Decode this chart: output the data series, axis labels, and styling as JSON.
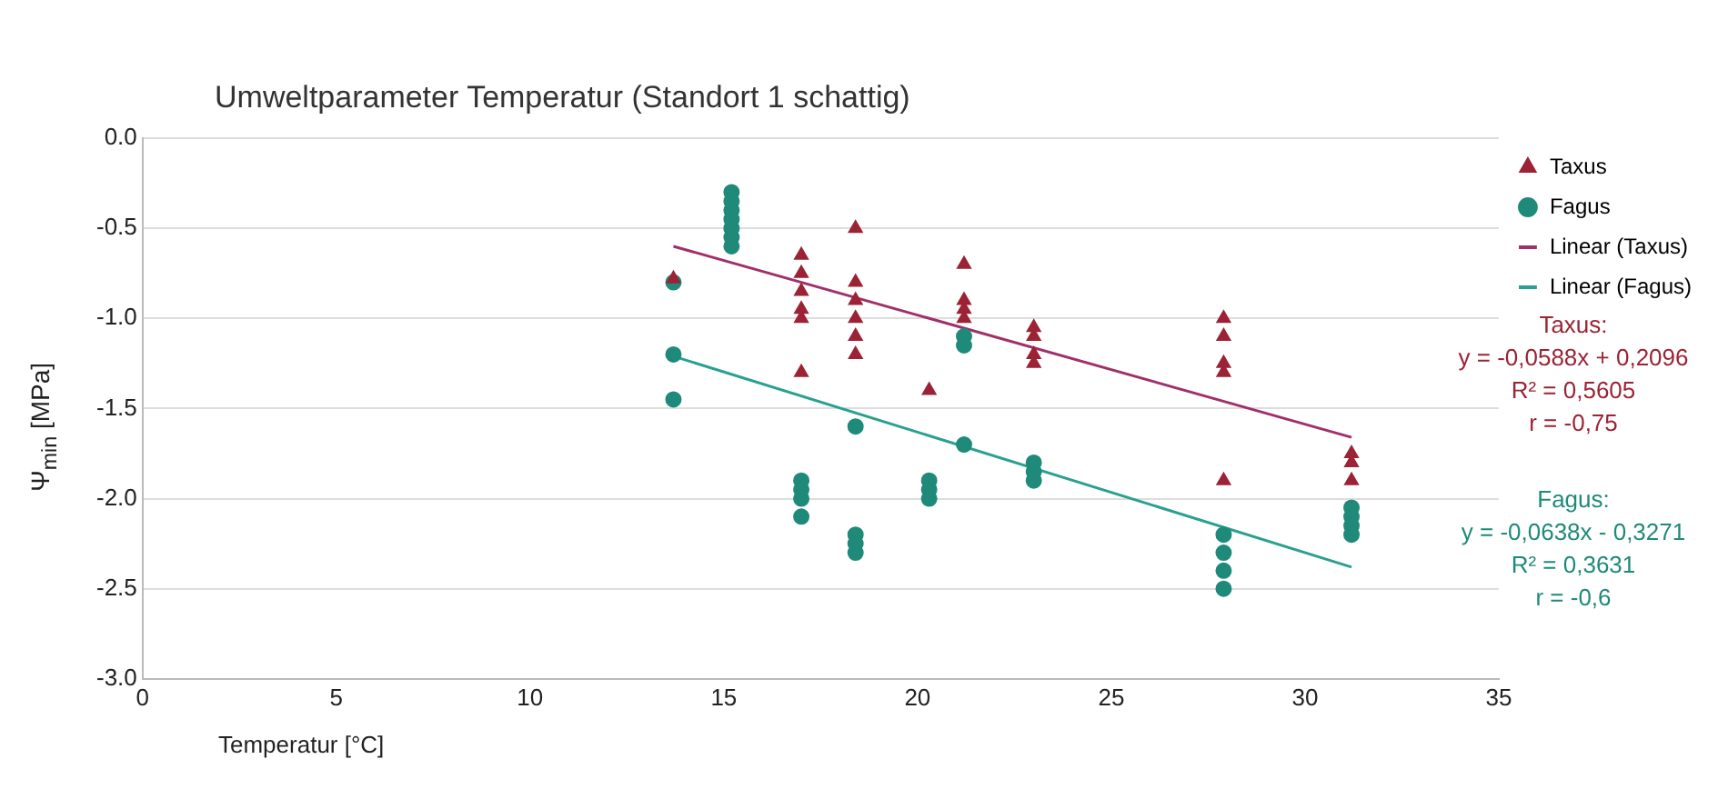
{
  "chart_data": {
    "type": "scatter",
    "title": "Umweltparameter Temperatur (Standort 1 schattig)",
    "xlabel": "Temperatur [°C]",
    "ylabel": "Ψ$_{min}$ [MPa]",
    "xlim": [
      0,
      35
    ],
    "xticks": [
      0,
      5,
      10,
      15,
      20,
      25,
      30,
      35
    ],
    "ylim": [
      -3,
      0
    ],
    "yticks": [
      {
        "value": 0,
        "label": "0.0"
      },
      {
        "value": -0.5,
        "label": "-0.5"
      },
      {
        "value": -1,
        "label": "-1.0"
      },
      {
        "value": -1.5,
        "label": "-1.5"
      },
      {
        "value": -2,
        "label": "-2.0"
      },
      {
        "value": -2.5,
        "label": "-2.5"
      },
      {
        "value": -3,
        "label": "-3.0"
      }
    ],
    "grid": "y",
    "legend": "right",
    "series": [
      {
        "name": "Taxus",
        "marker": "triangle",
        "color": "#9b2335",
        "x": [
          13.7,
          17.0,
          17.0,
          17.0,
          17.0,
          17.0,
          17.0,
          18.4,
          18.4,
          18.4,
          18.4,
          18.4,
          18.4,
          20.3,
          21.2,
          21.2,
          21.2,
          21.2,
          23.0,
          23.0,
          23.0,
          23.0,
          27.9,
          27.9,
          27.9,
          27.9,
          27.9,
          31.2,
          31.2,
          31.2
        ],
        "values": [
          -0.78,
          -0.65,
          -0.75,
          -0.85,
          -0.95,
          -1.0,
          -1.3,
          -0.5,
          -0.8,
          -0.9,
          -1.0,
          -1.1,
          -1.2,
          -1.4,
          -0.7,
          -0.9,
          -0.95,
          -1.0,
          -1.05,
          -1.1,
          -1.2,
          -1.25,
          -1.0,
          -1.1,
          -1.25,
          -1.3,
          -1.9,
          -1.75,
          -1.8,
          -1.9
        ]
      },
      {
        "name": "Fagus",
        "marker": "circle",
        "color": "#1f8a7a",
        "x": [
          13.7,
          13.7,
          13.7,
          15.2,
          15.2,
          15.2,
          15.2,
          15.2,
          15.2,
          15.2,
          17.0,
          17.0,
          17.0,
          17.0,
          18.4,
          18.4,
          18.4,
          18.4,
          20.3,
          20.3,
          20.3,
          21.2,
          21.2,
          21.2,
          23.0,
          23.0,
          23.0,
          27.9,
          27.9,
          27.9,
          27.9,
          31.2,
          31.2,
          31.2,
          31.2
        ],
        "values": [
          -0.8,
          -1.2,
          -1.45,
          -0.3,
          -0.35,
          -0.4,
          -0.45,
          -0.5,
          -0.55,
          -0.6,
          -1.9,
          -1.95,
          -2.0,
          -2.1,
          -1.6,
          -2.2,
          -2.25,
          -2.3,
          -1.9,
          -1.95,
          -2.0,
          -1.1,
          -1.15,
          -1.7,
          -1.8,
          -1.85,
          -1.9,
          -2.2,
          -2.3,
          -2.4,
          -2.5,
          -2.05,
          -2.1,
          -2.15,
          -2.2
        ]
      },
      {
        "name": "Linear (Taxus)",
        "type": "line",
        "marker": "none",
        "color": "#a0306a",
        "x": [
          13.7,
          31.2
        ],
        "values": [
          -0.6,
          -1.66
        ]
      },
      {
        "name": "Linear (Fagus)",
        "type": "line",
        "marker": "none",
        "color": "#2aa090",
        "x": [
          13.7,
          31.2
        ],
        "values": [
          -1.21,
          -2.38
        ]
      }
    ],
    "annotations": [
      "Taxus:\ny = -0,0588x + 0,2096\nR² = 0,5605\nr = -0,75",
      "Fagus:\ny = -0,0638x - 0,3271\nR² = 0,3631\nr = -0,6"
    ]
  }
}
